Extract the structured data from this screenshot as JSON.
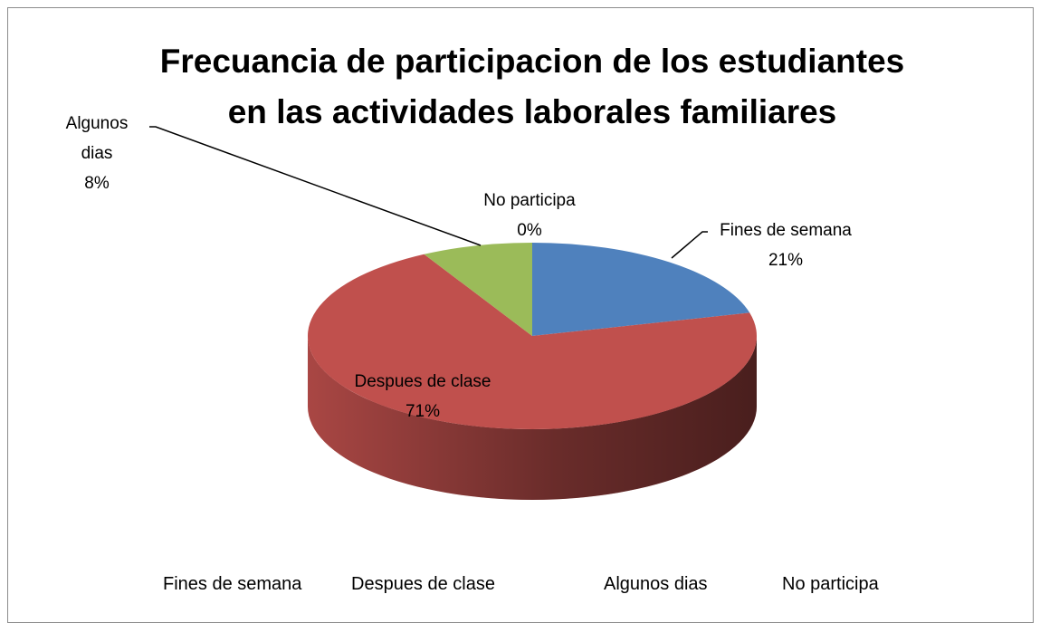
{
  "chart_data": {
    "type": "pie3d",
    "title": "Frecuancia de participacion de los estudiantes en las actividades laborales familiares",
    "categories": [
      "Fines de semana",
      "Despues de clase",
      "Algunos dias",
      "No participa"
    ],
    "values": [
      21,
      71,
      8,
      0
    ],
    "value_labels": [
      "21%",
      "71%",
      "8%",
      "0%"
    ],
    "colors": [
      "#4f81bd",
      "#c0504d",
      "#9bbb59",
      "#8064a2"
    ],
    "legend": "bottom"
  }
}
